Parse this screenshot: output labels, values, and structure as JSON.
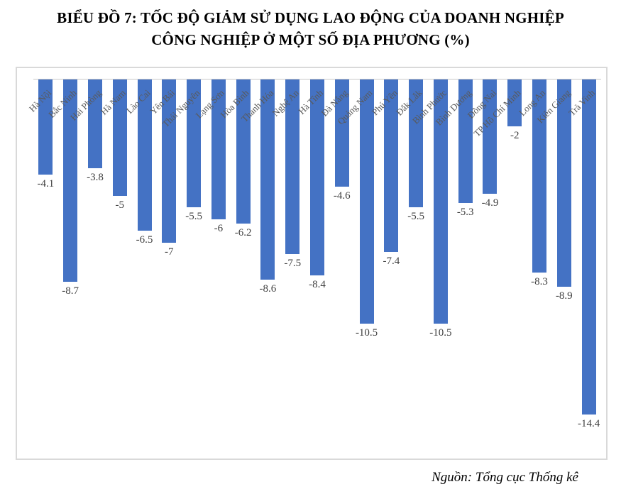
{
  "title": {
    "line1": "BIỂU ĐỒ 7: TỐC ĐỘ GIẢM SỬ DỤNG LAO ĐỘNG CỦA DOANH NGHIỆP",
    "line2": "CÔNG NGHIỆP Ở MỘT SỐ ĐỊA PHƯƠNG (%)"
  },
  "source": "Nguồn: Tổng cục Thống kê",
  "colors": {
    "bar": "#4472C4",
    "axis_line": "#c8c8c8",
    "plot_border": "#d9d9d9",
    "value_label": "#404040",
    "category_label": "#595959"
  },
  "chart_data": {
    "type": "bar",
    "orientation": "vertical-negative",
    "title": "BIỂU ĐỒ 7: TỐC ĐỘ GIẢM SỬ DỤNG LAO ĐỘNG CỦA DOANH NGHIỆP CÔNG NGHIỆP Ở MỘT SỐ ĐỊA PHƯƠNG (%)",
    "xlabel": "",
    "ylabel": "",
    "ylim": [
      -16,
      0
    ],
    "grid": false,
    "legend": "none",
    "data_labels": true,
    "categories": [
      "Hà Nội",
      "Bắc Ninh",
      "Hải Phòng",
      "Hà Nam",
      "Lào Cai",
      "Yên Bái",
      "Thái Nguyên",
      "Lạng Sơn",
      "Hòa Bình",
      "Thanh Hóa",
      "Nghệ An",
      "Hà Tĩnh",
      "Đà Nẵng",
      "Quảng Nam",
      "Phú Yên",
      "Đắk Lắk",
      "Bình Phước",
      "Bình Dương",
      "Đồng Nai",
      "TP Hồ Chí Minh",
      "Long An",
      "Kiên Giang",
      "Trà Vinh"
    ],
    "values": [
      -4.1,
      -8.7,
      -3.8,
      -5,
      -6.5,
      -7,
      -5.5,
      -6,
      -6.2,
      -8.6,
      -7.5,
      -8.4,
      -4.6,
      -10.5,
      -7.4,
      -5.5,
      -10.5,
      -5.3,
      -4.9,
      -2,
      -8.3,
      -8.9,
      -14.4
    ]
  }
}
